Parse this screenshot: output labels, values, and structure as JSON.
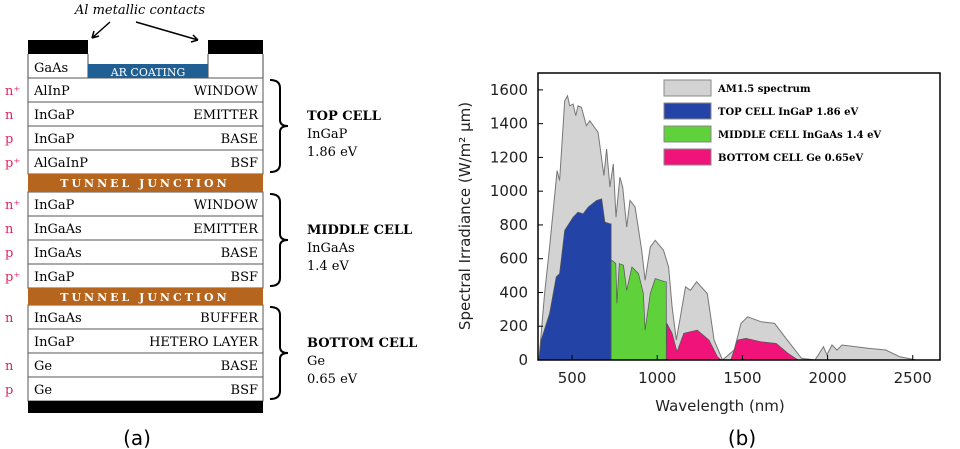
{
  "panel_a": {
    "caption": "(a)",
    "contacts_label": "Al metallic contacts",
    "cap_layer": "GaAs",
    "ar_coating": "AR COATING",
    "tunnel_junction": "TUNNEL JUNCTION",
    "colors": {
      "ar": "#1f5f94",
      "tunnel": "#b5651d",
      "doping": "#e0245e",
      "contact": "#000000"
    },
    "cells": [
      {
        "title": "TOP CELL",
        "material": "InGaP",
        "bandgap": "1.86 eV",
        "layers": [
          {
            "doping": "n+",
            "material": "AlInP",
            "role": "WINDOW"
          },
          {
            "doping": "n",
            "material": "InGaP",
            "role": "EMITTER"
          },
          {
            "doping": "p",
            "material": "InGaP",
            "role": "BASE"
          },
          {
            "doping": "p+",
            "material": "AlGaInP",
            "role": "BSF"
          }
        ]
      },
      {
        "title": "MIDDLE CELL",
        "material": "InGaAs",
        "bandgap": "1.4 eV",
        "layers": [
          {
            "doping": "n+",
            "material": "InGaP",
            "role": "WINDOW"
          },
          {
            "doping": "n",
            "material": "InGaAs",
            "role": "EMITTER"
          },
          {
            "doping": "p",
            "material": "InGaAs",
            "role": "BASE"
          },
          {
            "doping": "p+",
            "material": "InGaP",
            "role": "BSF"
          }
        ]
      },
      {
        "title": "BOTTOM CELL",
        "material": "Ge",
        "bandgap": "0.65 eV",
        "layers": [
          {
            "doping": "n",
            "material": "InGaAs",
            "role": "BUFFER"
          },
          {
            "doping": "",
            "material": "InGaP",
            "role": "HETERO LAYER"
          },
          {
            "doping": "n",
            "material": "Ge",
            "role": "BASE"
          },
          {
            "doping": "p",
            "material": "Ge",
            "role": "BSF"
          }
        ]
      }
    ]
  },
  "chart_data": {
    "caption": "(b)",
    "type": "area",
    "xlabel": "Wavelength (nm)",
    "ylabel": "Spectral Irradiance (W/m² μm)",
    "xlim": [
      300,
      2660
    ],
    "ylim": [
      0,
      1700
    ],
    "xticks": [
      500,
      1000,
      1500,
      2000,
      2500
    ],
    "yticks": [
      0,
      200,
      400,
      600,
      800,
      1000,
      1200,
      1400,
      1600
    ],
    "legend_position": "top-right",
    "series": [
      {
        "name": "AM1.5 spectrum",
        "color": "#d3d3d3",
        "points": [
          [
            305,
            0
          ],
          [
            339,
            394
          ],
          [
            368,
            670
          ],
          [
            412,
            1122
          ],
          [
            427,
            1063
          ],
          [
            457,
            1535
          ],
          [
            473,
            1565
          ],
          [
            486,
            1506
          ],
          [
            506,
            1516
          ],
          [
            522,
            1447
          ],
          [
            535,
            1506
          ],
          [
            555,
            1496
          ],
          [
            584,
            1388
          ],
          [
            604,
            1417
          ],
          [
            653,
            1348
          ],
          [
            687,
            1092
          ],
          [
            703,
            1250
          ],
          [
            722,
            1024
          ],
          [
            742,
            1161
          ],
          [
            758,
            846
          ],
          [
            781,
            1083
          ],
          [
            797,
            1024
          ],
          [
            821,
            787
          ],
          [
            840,
            945
          ],
          [
            870,
            906
          ],
          [
            909,
            650
          ],
          [
            929,
            472
          ],
          [
            959,
            670
          ],
          [
            988,
            709
          ],
          [
            1037,
            650
          ],
          [
            1067,
            551
          ],
          [
            1087,
            315
          ],
          [
            1112,
            118
          ],
          [
            1136,
            256
          ],
          [
            1166,
            433
          ],
          [
            1195,
            413
          ],
          [
            1231,
            463
          ],
          [
            1294,
            394
          ],
          [
            1334,
            118
          ],
          [
            1383,
            0
          ],
          [
            1452,
            59
          ],
          [
            1492,
            217
          ],
          [
            1531,
            256
          ],
          [
            1610,
            226
          ],
          [
            1689,
            217
          ],
          [
            1748,
            138
          ],
          [
            1847,
            10
          ],
          [
            1926,
            0
          ],
          [
            1976,
            79
          ],
          [
            1996,
            30
          ],
          [
            2026,
            89
          ],
          [
            2055,
            59
          ],
          [
            2085,
            89
          ],
          [
            2243,
            69
          ],
          [
            2342,
            59
          ],
          [
            2421,
            20
          ],
          [
            2520,
            0
          ]
        ]
      },
      {
        "name": "TOP CELL InGaP 1.86 eV",
        "color": "#2343a6",
        "points": [
          [
            305,
            0
          ],
          [
            318,
            118
          ],
          [
            368,
            276
          ],
          [
            407,
            492
          ],
          [
            427,
            512
          ],
          [
            457,
            768
          ],
          [
            506,
            846
          ],
          [
            535,
            876
          ],
          [
            565,
            866
          ],
          [
            595,
            906
          ],
          [
            644,
            945
          ],
          [
            674,
            955
          ],
          [
            693,
            817
          ],
          [
            723,
            807
          ],
          [
            729,
            807
          ],
          [
            729,
            0
          ]
        ]
      },
      {
        "name": "MIDDLE CELL InGaAs 1.4 eV",
        "color": "#5fd13a",
        "points": [
          [
            729,
            0
          ],
          [
            729,
            591
          ],
          [
            733,
            591
          ],
          [
            757,
            571
          ],
          [
            763,
            335
          ],
          [
            777,
            571
          ],
          [
            802,
            561
          ],
          [
            821,
            413
          ],
          [
            851,
            551
          ],
          [
            890,
            512
          ],
          [
            919,
            394
          ],
          [
            929,
            177
          ],
          [
            959,
            394
          ],
          [
            988,
            482
          ],
          [
            1047,
            463
          ],
          [
            1053,
            463
          ],
          [
            1053,
            0
          ]
        ]
      },
      {
        "name": "BOTTOM CELL Ge 0.65eV",
        "color": "#f0137a",
        "points": [
          [
            1053,
            0
          ],
          [
            1057,
            217
          ],
          [
            1087,
            158
          ],
          [
            1116,
            49
          ],
          [
            1156,
            158
          ],
          [
            1235,
            177
          ],
          [
            1304,
            118
          ],
          [
            1353,
            20
          ],
          [
            1373,
            0
          ],
          [
            1432,
            0
          ],
          [
            1471,
            118
          ],
          [
            1521,
            128
          ],
          [
            1610,
            108
          ],
          [
            1699,
            98
          ],
          [
            1768,
            39
          ],
          [
            1827,
            0
          ]
        ]
      }
    ]
  }
}
